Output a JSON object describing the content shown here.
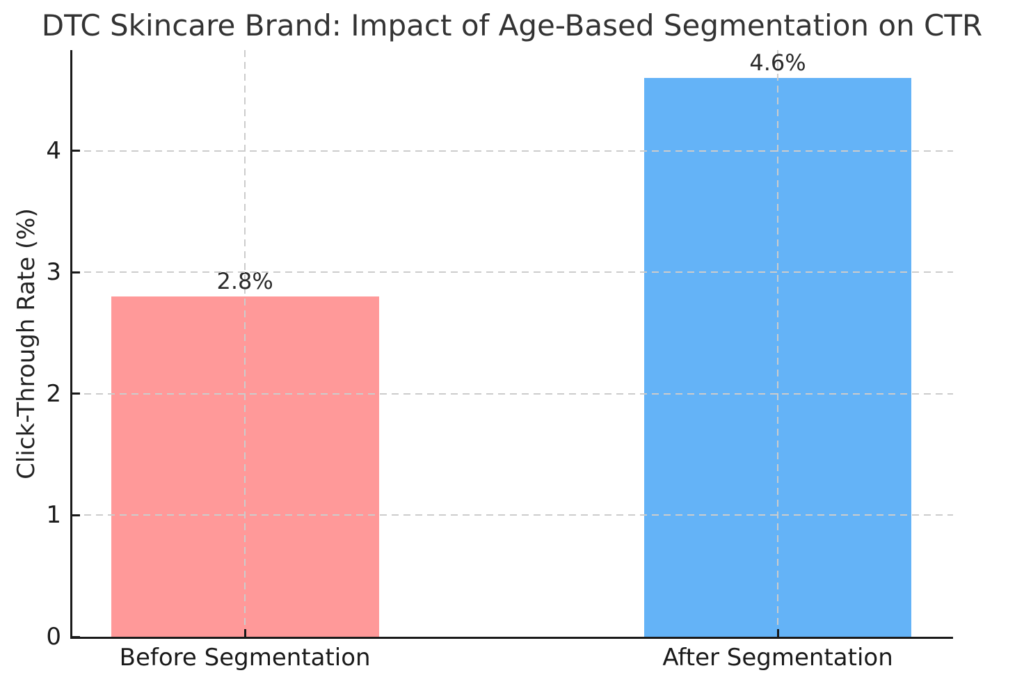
{
  "chart_data": {
    "type": "bar",
    "title": "DTC Skincare Brand: Impact of Age-Based Segmentation on CTR",
    "xlabel": "",
    "ylabel": "Click-Through Rate (%)",
    "categories": [
      "Before Segmentation",
      "After Segmentation"
    ],
    "values": [
      2.8,
      4.6
    ],
    "value_labels": [
      "2.8%",
      "4.6%"
    ],
    "bar_colors": [
      "#ff9999",
      "#64b3f7"
    ],
    "ylim": [
      0,
      4.83
    ],
    "yticks": [
      0,
      1,
      2,
      3,
      4
    ],
    "grid": "dashed horizontal at y=1..4 and vertical at bar centers, drawn on top of bars",
    "legend": "none",
    "text_color": "#333333",
    "grid_color": "#cccccc",
    "axis_color": "#1a1a1a"
  }
}
